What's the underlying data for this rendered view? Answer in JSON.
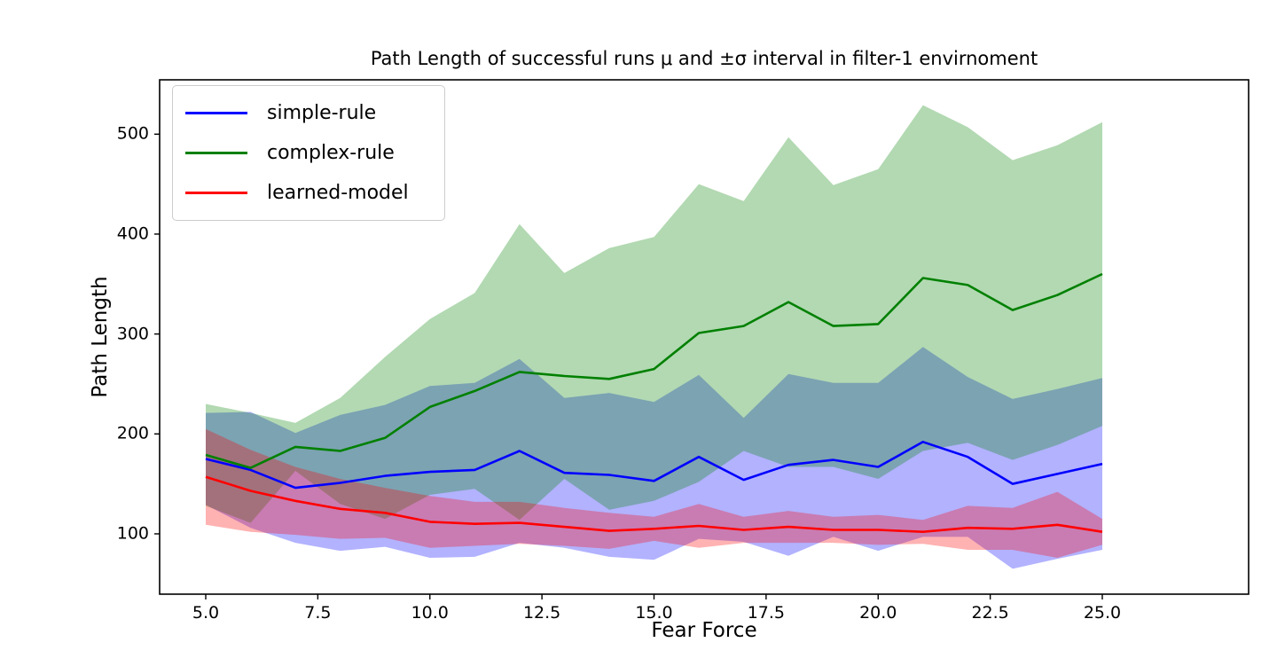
{
  "title": "Path Length of successful runs μ and ±σ interval in filter-1 envirnoment",
  "xlabel": "Fear Force",
  "ylabel": "Path Length",
  "legend": {
    "entries": [
      {
        "label": "simple-rule",
        "color": "#0000ff"
      },
      {
        "label": "complex-rule",
        "color": "#008000"
      },
      {
        "label": "learned-model",
        "color": "#ff0000"
      }
    ]
  },
  "chart_data": {
    "type": "line",
    "band_type": "mean ± 1 sigma, shaded",
    "grid": false,
    "legend_position": "upper left",
    "x": [
      5,
      6,
      7,
      8,
      9,
      10,
      11,
      12,
      13,
      14,
      15,
      16,
      17,
      18,
      19,
      20,
      21,
      22,
      23,
      24,
      25
    ],
    "x_tick_labels": [
      "5.0",
      "7.5",
      "10.0",
      "12.5",
      "15.0",
      "17.5",
      "20.0",
      "22.5",
      "25.0"
    ],
    "x_ticks": [
      5,
      7.5,
      10,
      12.5,
      15,
      17.5,
      20,
      22.5,
      25
    ],
    "y_tick_labels": [
      "100",
      "200",
      "300",
      "400",
      "500"
    ],
    "y_ticks": [
      100,
      200,
      300,
      400,
      500
    ],
    "xlim": [
      3.97,
      28.26
    ],
    "ylim": [
      40,
      554
    ],
    "series": [
      {
        "name": "simple-rule",
        "color": "#0000ff",
        "band_alpha": 0.3,
        "mean": [
          175,
          164,
          146,
          151,
          158,
          162,
          164,
          183,
          161,
          159,
          153,
          177,
          154,
          169,
          174,
          167,
          192,
          177,
          150,
          160,
          170
        ],
        "sigma": [
          46,
          58,
          55,
          68,
          71,
          86,
          87,
          92,
          75,
          82,
          79,
          82,
          62,
          91,
          77,
          84,
          95,
          80,
          85,
          85,
          86
        ]
      },
      {
        "name": "complex-rule",
        "color": "#008000",
        "band_alpha": 0.3,
        "mean": [
          179,
          166,
          187,
          183,
          196,
          227,
          243,
          262,
          258,
          255,
          265,
          301,
          308,
          332,
          308,
          310,
          356,
          349,
          324,
          339,
          360
        ],
        "sigma": [
          51,
          55,
          24,
          53,
          81,
          88,
          98,
          148,
          103,
          131,
          132,
          149,
          125,
          165,
          141,
          155,
          173,
          158,
          150,
          150,
          152
        ]
      },
      {
        "name": "learned-model",
        "color": "#ff0000",
        "band_alpha": 0.3,
        "mean": [
          157,
          143,
          133,
          125,
          121,
          112,
          110,
          111,
          107,
          103,
          105,
          108,
          104,
          107,
          104,
          104,
          102,
          106,
          105,
          109,
          102
        ],
        "sigma": [
          48,
          41,
          34,
          30,
          25,
          26,
          22,
          21,
          19,
          18,
          12,
          22,
          13,
          16,
          13,
          15,
          12,
          22,
          21,
          33,
          13
        ]
      }
    ]
  }
}
